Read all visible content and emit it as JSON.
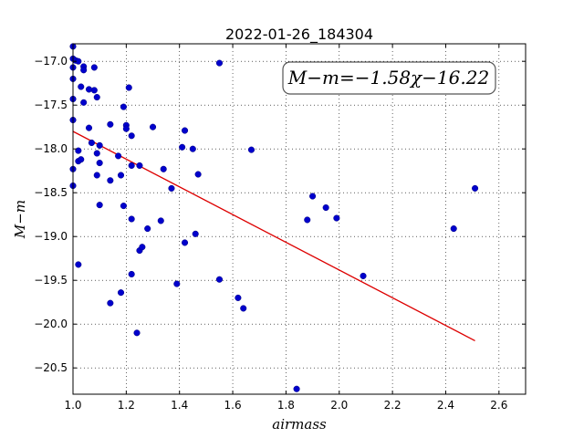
{
  "chart_data": {
    "type": "scatter",
    "title": "2022-01-26_184304",
    "xlabel": "airmass",
    "ylabel": "M−m",
    "xlim": [
      1.0,
      2.7
    ],
    "ylim": [
      -20.8,
      -16.8
    ],
    "x_ticks": [
      1.0,
      1.2,
      1.4,
      1.6,
      1.8,
      2.0,
      2.2,
      2.4,
      2.6
    ],
    "x_tick_labels": [
      "1.0",
      "1.2",
      "1.4",
      "1.6",
      "1.8",
      "2.0",
      "2.2",
      "2.4",
      "2.6"
    ],
    "y_ticks": [
      -17.0,
      -17.5,
      -18.0,
      -18.5,
      -19.0,
      -19.5,
      -20.0,
      -20.5
    ],
    "y_tick_labels": [
      "−17.0",
      "−17.5",
      "−18.0",
      "−18.5",
      "−19.0",
      "−19.5",
      "−20.0",
      "−20.5"
    ],
    "grid": true,
    "annotation": "M−m=−1.58χ−16.22",
    "annotation_placement": "top-right",
    "series": [
      {
        "type": "scatter",
        "color": "#0000cc",
        "points": [
          [
            1.0,
            -16.83
          ],
          [
            1.0,
            -16.97
          ],
          [
            1.0,
            -17.07
          ],
          [
            1.0,
            -17.2
          ],
          [
            1.0,
            -17.43
          ],
          [
            1.0,
            -17.67
          ],
          [
            1.0,
            -18.23
          ],
          [
            1.0,
            -18.42
          ],
          [
            1.01,
            -16.99
          ],
          [
            1.02,
            -17.0
          ],
          [
            1.02,
            -18.02
          ],
          [
            1.02,
            -18.14
          ],
          [
            1.02,
            -19.32
          ],
          [
            1.03,
            -17.29
          ],
          [
            1.03,
            -18.12
          ],
          [
            1.04,
            -17.06
          ],
          [
            1.04,
            -17.1
          ],
          [
            1.04,
            -17.47
          ],
          [
            1.06,
            -17.32
          ],
          [
            1.06,
            -17.76
          ],
          [
            1.07,
            -17.93
          ],
          [
            1.08,
            -17.07
          ],
          [
            1.08,
            -17.33
          ],
          [
            1.09,
            -17.41
          ],
          [
            1.09,
            -18.05
          ],
          [
            1.09,
            -18.3
          ],
          [
            1.1,
            -17.96
          ],
          [
            1.1,
            -18.16
          ],
          [
            1.1,
            -18.64
          ],
          [
            1.14,
            -17.72
          ],
          [
            1.14,
            -18.36
          ],
          [
            1.14,
            -19.76
          ],
          [
            1.17,
            -18.08
          ],
          [
            1.18,
            -18.3
          ],
          [
            1.18,
            -19.64
          ],
          [
            1.19,
            -17.52
          ],
          [
            1.19,
            -18.65
          ],
          [
            1.2,
            -17.73
          ],
          [
            1.2,
            -17.77
          ],
          [
            1.21,
            -17.3
          ],
          [
            1.22,
            -17.85
          ],
          [
            1.22,
            -18.19
          ],
          [
            1.22,
            -18.8
          ],
          [
            1.22,
            -19.43
          ],
          [
            1.24,
            -20.1
          ],
          [
            1.25,
            -18.19
          ],
          [
            1.25,
            -19.16
          ],
          [
            1.26,
            -19.12
          ],
          [
            1.28,
            -18.91
          ],
          [
            1.3,
            -17.75
          ],
          [
            1.33,
            -18.82
          ],
          [
            1.34,
            -18.23
          ],
          [
            1.37,
            -18.45
          ],
          [
            1.39,
            -19.54
          ],
          [
            1.41,
            -17.98
          ],
          [
            1.42,
            -17.79
          ],
          [
            1.42,
            -19.07
          ],
          [
            1.45,
            -18.0
          ],
          [
            1.46,
            -18.97
          ],
          [
            1.47,
            -18.29
          ],
          [
            1.55,
            -17.02
          ],
          [
            1.55,
            -19.49
          ],
          [
            1.62,
            -19.7
          ],
          [
            1.64,
            -19.82
          ],
          [
            1.67,
            -18.01
          ],
          [
            1.84,
            -20.74
          ],
          [
            1.88,
            -18.81
          ],
          [
            1.9,
            -18.54
          ],
          [
            1.95,
            -18.67
          ],
          [
            1.99,
            -18.79
          ],
          [
            2.09,
            -19.45
          ],
          [
            2.43,
            -18.91
          ],
          [
            2.51,
            -18.45
          ]
        ]
      },
      {
        "type": "line",
        "color": "#dd0000",
        "x": [
          1.0,
          2.51
        ],
        "y": [
          -17.8,
          -20.19
        ]
      }
    ]
  }
}
